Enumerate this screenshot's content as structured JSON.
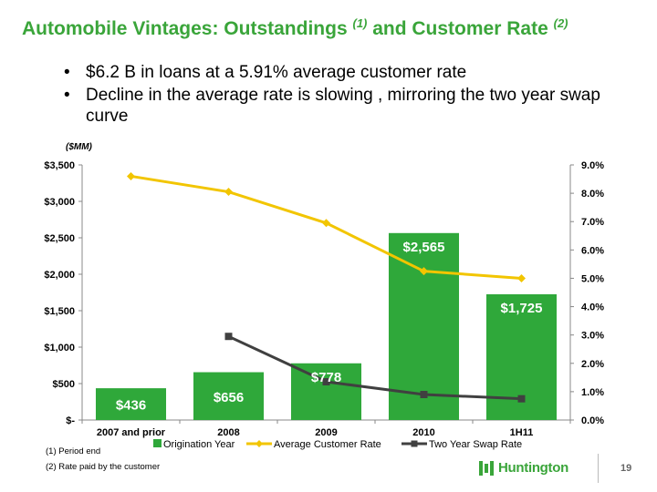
{
  "title": {
    "main": "Automobile Vintages: Outstandings",
    "ref1": "(1)",
    "middle": "and Customer Rate",
    "ref2": "(2)"
  },
  "bullets": [
    {
      "marker": "•",
      "text": "$6.2 B in loans at a 5.91% average customer rate"
    },
    {
      "marker": "•",
      "text": "Decline in the average rate is slowing , mirroring the two year swap curve"
    }
  ],
  "units": "($MM)",
  "footnotes": [
    "(1)  Period end",
    "(2)  Rate paid by the customer"
  ],
  "page_number": "19",
  "logo": {
    "text": "Huntington"
  },
  "colors": {
    "title": "#3aa53a",
    "bar": "#2fa83a",
    "avg_rate": "#f2c500",
    "swap": "#404040"
  },
  "chart_data": {
    "type": "bar",
    "categories": [
      "2007 and prior",
      "2008",
      "2009",
      "2010",
      "1H11"
    ],
    "series": [
      {
        "name": "Origination Year",
        "type": "bar",
        "axis": "left",
        "values": [
          436,
          656,
          778,
          2565,
          1725
        ],
        "labels": [
          "$436",
          "$656",
          "$778",
          "$2,565",
          "$1,725"
        ]
      },
      {
        "name": "Average Customer Rate",
        "type": "line",
        "axis": "right",
        "marker": "diamond",
        "values": [
          8.6,
          8.05,
          6.95,
          5.25,
          5.0
        ]
      },
      {
        "name": "Two Year Swap Rate",
        "type": "line",
        "axis": "right",
        "marker": "square",
        "values": [
          null,
          2.95,
          1.35,
          0.9,
          0.75
        ]
      }
    ],
    "left_axis": {
      "ylim": [
        0,
        3500
      ],
      "ticks": [
        0,
        500,
        1000,
        1500,
        2000,
        2500,
        3000,
        3500
      ],
      "tick_labels": [
        "$-",
        "$500",
        "$1,000",
        "$1,500",
        "$2,000",
        "$2,500",
        "$3,000",
        "$3,500"
      ]
    },
    "right_axis": {
      "ylim": [
        0,
        9
      ],
      "ticks": [
        0,
        1,
        2,
        3,
        4,
        5,
        6,
        7,
        8,
        9
      ],
      "tick_labels": [
        "0.0%",
        "1.0%",
        "2.0%",
        "3.0%",
        "4.0%",
        "5.0%",
        "6.0%",
        "7.0%",
        "8.0%",
        "9.0%"
      ]
    },
    "grid": false,
    "legend": "bottom"
  }
}
